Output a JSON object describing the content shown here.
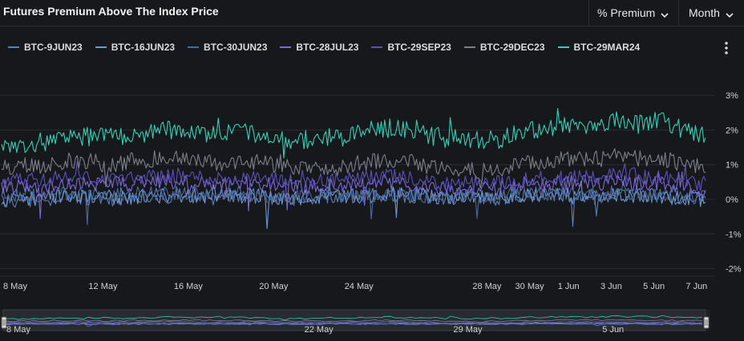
{
  "header": {
    "title": "Futures Premium Above The Index Price",
    "metric_dropdown": "% Premium",
    "period_dropdown": "Month"
  },
  "colors": {
    "background": "#17181b",
    "grid": "#2a2c30"
  },
  "icons": {
    "chevron": "chevron-down-icon",
    "menu": "more-vertical-icon",
    "handle": "range-handle-icon"
  },
  "chart_data": {
    "type": "line",
    "title": "Futures Premium Above The Index Price",
    "x_tick_labels": [
      "8 May",
      "12 May",
      "16 May",
      "20 May",
      "24 May",
      "28 May",
      "30 May",
      "1 Jun",
      "3 Jun",
      "5 Jun",
      "7 Jun"
    ],
    "x_tick_days": [
      0,
      4,
      8,
      12,
      16,
      22,
      24,
      26,
      28,
      30,
      32
    ],
    "x_range_days": [
      0,
      33
    ],
    "y_tick_labels": [
      "3%",
      "2%",
      "1%",
      "0%",
      "-1%",
      "-2%"
    ],
    "y_tick_values": [
      3,
      2,
      1,
      0,
      -1,
      -2
    ],
    "ylim": [
      -2.2,
      3.3
    ],
    "y_unit": "%",
    "navigator_labels": [
      "8 May",
      "22 May",
      "29 May",
      "5 Jun"
    ],
    "navigator_days": [
      0,
      14,
      21,
      28
    ],
    "grid": true,
    "legend_position": "top-left",
    "series": [
      {
        "name": "BTC-9JUN23",
        "color": "#5b7fb0",
        "base": [
          -0.05,
          0.0,
          -0.05,
          0.05,
          0.05,
          0.0,
          0.05,
          0.1,
          0.1,
          0.1,
          0.05,
          0.1,
          0.1,
          0.0,
          0.0,
          0.05,
          0.1,
          0.1,
          0.1,
          0.1,
          0.1,
          0.05,
          0.05,
          0.0,
          0.1,
          0.15,
          0.1,
          0.1,
          0.1,
          0.1,
          0.05,
          0.1,
          0.0,
          -0.1
        ]
      },
      {
        "name": "BTC-16JUN23",
        "color": "#6d96d6",
        "base": [
          0.0,
          0.0,
          0.05,
          0.05,
          0.1,
          0.05,
          0.05,
          0.1,
          0.1,
          0.1,
          0.1,
          0.1,
          0.1,
          0.05,
          0.05,
          0.1,
          0.1,
          0.1,
          0.15,
          0.15,
          0.1,
          0.05,
          0.1,
          0.05,
          0.1,
          0.15,
          0.15,
          0.15,
          0.1,
          0.15,
          0.1,
          0.1,
          0.05,
          0.0
        ]
      },
      {
        "name": "BTC-30JUN23",
        "color": "#4a6a9c",
        "base": [
          0.1,
          0.1,
          0.1,
          0.15,
          0.15,
          0.15,
          0.15,
          0.15,
          0.2,
          0.15,
          0.15,
          0.15,
          0.15,
          0.1,
          0.1,
          0.15,
          0.15,
          0.15,
          0.15,
          0.15,
          0.1,
          0.1,
          0.1,
          0.1,
          0.15,
          0.15,
          0.15,
          0.2,
          0.15,
          0.2,
          0.15,
          0.15,
          0.1,
          0.05
        ]
      },
      {
        "name": "BTC-28JUL23",
        "color": "#7a68d8",
        "base": [
          0.35,
          0.4,
          0.4,
          0.45,
          0.45,
          0.45,
          0.45,
          0.5,
          0.5,
          0.45,
          0.45,
          0.45,
          0.45,
          0.4,
          0.35,
          0.4,
          0.4,
          0.45,
          0.5,
          0.45,
          0.35,
          0.3,
          0.3,
          0.3,
          0.4,
          0.45,
          0.45,
          0.5,
          0.45,
          0.5,
          0.45,
          0.45,
          0.35,
          0.3
        ]
      },
      {
        "name": "BTC-29SEP23",
        "color": "#5a50b8",
        "base": [
          0.55,
          0.6,
          0.55,
          0.65,
          0.65,
          0.6,
          0.6,
          0.65,
          0.7,
          0.65,
          0.6,
          0.6,
          0.6,
          0.55,
          0.5,
          0.55,
          0.55,
          0.6,
          0.65,
          0.6,
          0.5,
          0.45,
          0.45,
          0.45,
          0.55,
          0.6,
          0.65,
          0.7,
          0.65,
          0.75,
          0.65,
          0.65,
          0.5,
          0.45
        ]
      },
      {
        "name": "BTC-29DEC23",
        "color": "#7b7f88",
        "base": [
          0.9,
          1.0,
          1.0,
          1.1,
          1.1,
          1.0,
          1.1,
          1.15,
          1.2,
          1.15,
          1.05,
          1.05,
          1.05,
          0.95,
          0.9,
          0.95,
          0.95,
          1.05,
          1.15,
          1.1,
          0.95,
          0.85,
          0.85,
          0.85,
          0.95,
          1.05,
          1.1,
          1.2,
          1.15,
          1.25,
          1.15,
          1.2,
          1.0,
          0.95
        ]
      },
      {
        "name": "BTC-29MAR24",
        "color": "#2fd1b7",
        "base": [
          1.45,
          1.6,
          1.65,
          1.75,
          1.8,
          1.8,
          1.85,
          1.95,
          2.0,
          1.95,
          1.85,
          1.9,
          1.9,
          1.75,
          1.7,
          1.8,
          1.8,
          1.95,
          2.05,
          2.05,
          1.85,
          1.75,
          1.7,
          1.7,
          1.85,
          2.0,
          2.1,
          2.2,
          2.1,
          2.3,
          2.15,
          2.3,
          2.0,
          1.9
        ]
      }
    ]
  }
}
